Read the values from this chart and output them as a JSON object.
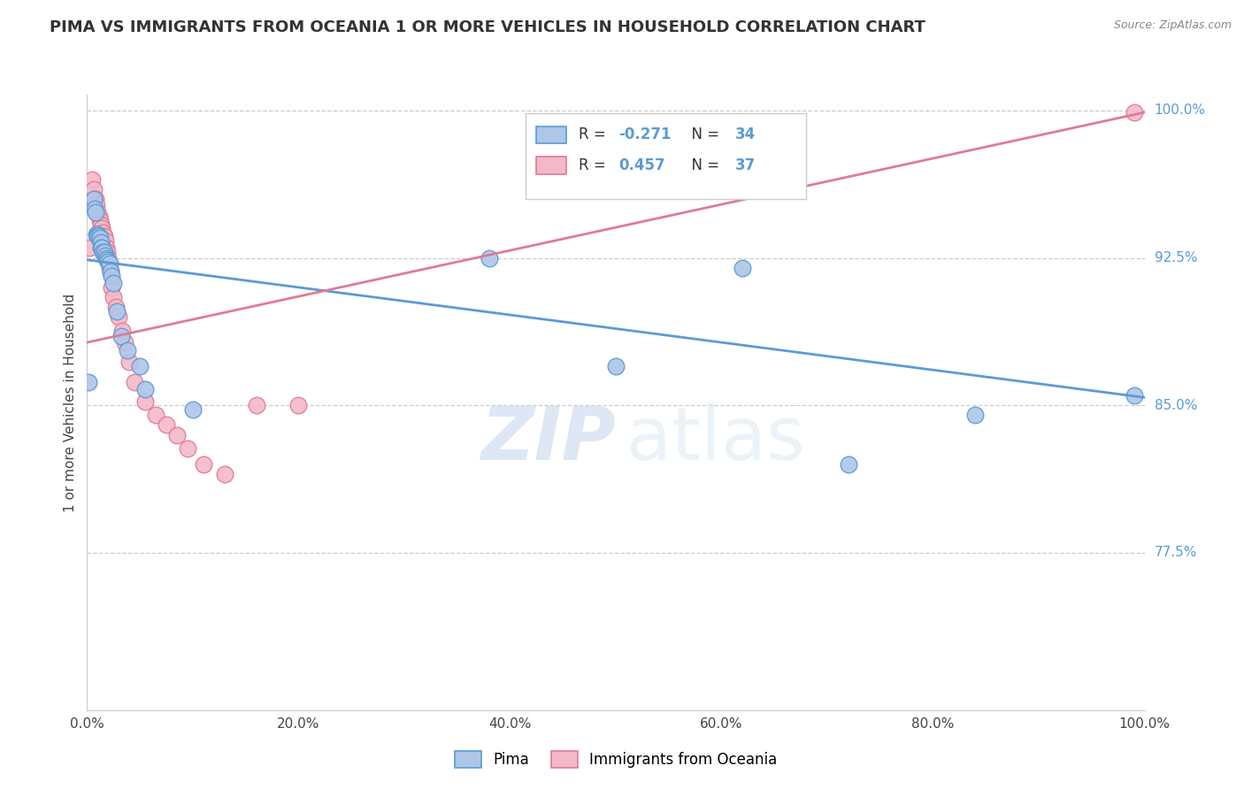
{
  "title": "PIMA VS IMMIGRANTS FROM OCEANIA 1 OR MORE VEHICLES IN HOUSEHOLD CORRELATION CHART",
  "source": "Source: ZipAtlas.com",
  "ylabel": "1 or more Vehicles in Household",
  "ylabel_right_labels": [
    "100.0%",
    "92.5%",
    "85.0%",
    "77.5%"
  ],
  "ylabel_right_values": [
    1.0,
    0.925,
    0.85,
    0.775
  ],
  "legend_labels": [
    "Pima",
    "Immigrants from Oceania"
  ],
  "R_blue": -0.271,
  "N_blue": 34,
  "R_pink": 0.457,
  "N_pink": 37,
  "blue_color": "#aec6e8",
  "pink_color": "#f4b8c8",
  "blue_line_color": "#5b9bd5",
  "pink_line_color": "#e07a96",
  "watermark_zip": "ZIP",
  "watermark_atlas": "atlas",
  "blue_points_x": [
    0.001,
    0.006,
    0.007,
    0.008,
    0.009,
    0.01,
    0.01,
    0.011,
    0.012,
    0.013,
    0.013,
    0.014,
    0.015,
    0.016,
    0.017,
    0.018,
    0.019,
    0.02,
    0.021,
    0.022,
    0.023,
    0.025,
    0.028,
    0.032,
    0.038,
    0.05,
    0.055,
    0.1,
    0.38,
    0.5,
    0.62,
    0.72,
    0.84,
    0.99
  ],
  "blue_points_y": [
    0.862,
    0.955,
    0.95,
    0.948,
    0.937,
    0.937,
    0.936,
    0.936,
    0.935,
    0.933,
    0.93,
    0.93,
    0.928,
    0.928,
    0.926,
    0.925,
    0.924,
    0.923,
    0.922,
    0.918,
    0.916,
    0.912,
    0.898,
    0.885,
    0.878,
    0.87,
    0.858,
    0.848,
    0.925,
    0.87,
    0.92,
    0.82,
    0.845,
    0.855
  ],
  "pink_points_x": [
    0.002,
    0.005,
    0.006,
    0.007,
    0.008,
    0.009,
    0.01,
    0.011,
    0.012,
    0.013,
    0.014,
    0.015,
    0.016,
    0.017,
    0.018,
    0.019,
    0.02,
    0.021,
    0.022,
    0.023,
    0.025,
    0.027,
    0.03,
    0.033,
    0.036,
    0.04,
    0.045,
    0.055,
    0.065,
    0.075,
    0.085,
    0.095,
    0.11,
    0.13,
    0.16,
    0.2,
    0.99
  ],
  "pink_points_y": [
    0.93,
    0.965,
    0.96,
    0.955,
    0.955,
    0.952,
    0.948,
    0.946,
    0.944,
    0.942,
    0.94,
    0.938,
    0.936,
    0.934,
    0.93,
    0.928,
    0.925,
    0.92,
    0.918,
    0.91,
    0.905,
    0.9,
    0.895,
    0.888,
    0.882,
    0.872,
    0.862,
    0.852,
    0.845,
    0.84,
    0.835,
    0.828,
    0.82,
    0.815,
    0.85,
    0.85,
    0.999
  ],
  "xlim": [
    0.0,
    1.0
  ],
  "ylim": [
    0.695,
    1.008
  ],
  "blue_trend_x": [
    0.0,
    1.0
  ],
  "blue_trend_y": [
    0.924,
    0.854
  ],
  "pink_trend_x": [
    0.0,
    1.0
  ],
  "pink_trend_y": [
    0.882,
    0.999
  ],
  "xtick_vals": [
    0.0,
    0.2,
    0.4,
    0.6,
    0.8,
    1.0
  ],
  "xtick_labels": [
    "0.0%",
    "20.0%",
    "40.0%",
    "60.0%",
    "80.0%",
    "100.0%"
  ]
}
